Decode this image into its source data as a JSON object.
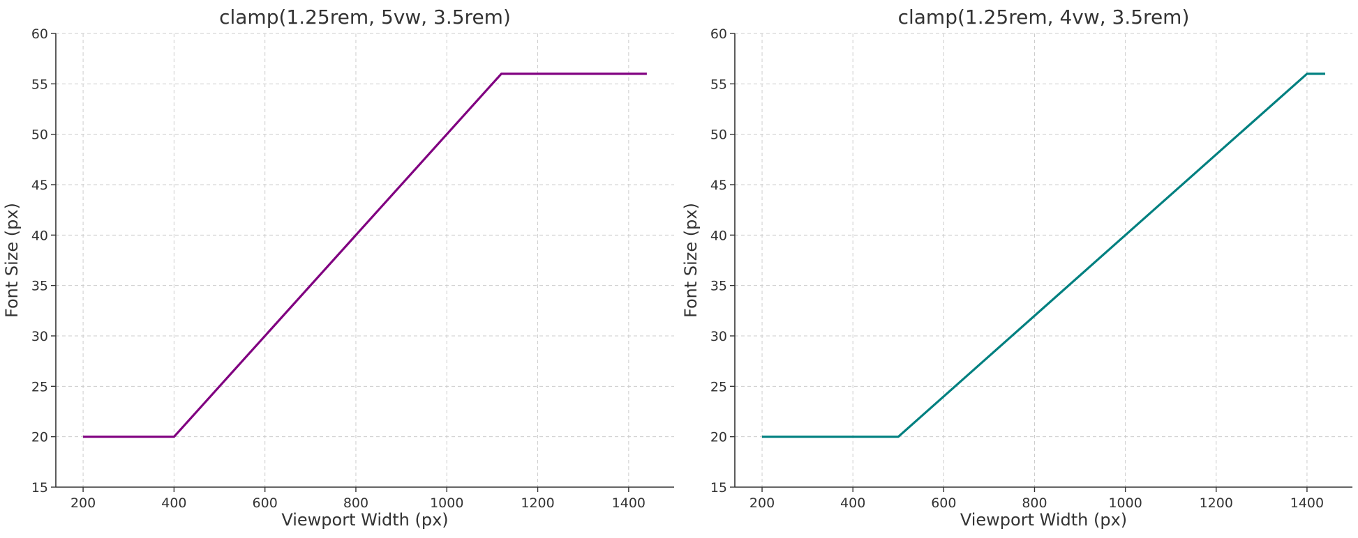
{
  "chart_data": [
    {
      "type": "line",
      "title": "clamp(1.25rem, 5vw, 3.5rem)",
      "xlabel": "Viewport Width (px)",
      "ylabel": "Font Size (px)",
      "xlim": [
        140,
        1500
      ],
      "ylim": [
        15,
        60
      ],
      "xticks": [
        "200",
        "400",
        "600",
        "800",
        "1000",
        "1200",
        "1400"
      ],
      "yticks": [
        "15",
        "20",
        "25",
        "30",
        "35",
        "40",
        "45",
        "50",
        "55",
        "60"
      ],
      "grid": true,
      "color": "#800080",
      "series": [
        {
          "x": [
            200,
            400,
            1120,
            1440
          ],
          "y": [
            20,
            20,
            56,
            56
          ]
        }
      ]
    },
    {
      "type": "line",
      "title": "clamp(1.25rem, 4vw, 3.5rem)",
      "xlabel": "Viewport Width (px)",
      "ylabel": "Font Size (px)",
      "xlim": [
        140,
        1500
      ],
      "ylim": [
        15,
        60
      ],
      "xticks": [
        "200",
        "400",
        "600",
        "800",
        "1000",
        "1200",
        "1400"
      ],
      "yticks": [
        "15",
        "20",
        "25",
        "30",
        "35",
        "40",
        "45",
        "50",
        "55",
        "60"
      ],
      "grid": true,
      "color": "#008080",
      "series": [
        {
          "x": [
            200,
            500,
            1400,
            1440
          ],
          "y": [
            20,
            20,
            56,
            56
          ]
        }
      ]
    }
  ]
}
